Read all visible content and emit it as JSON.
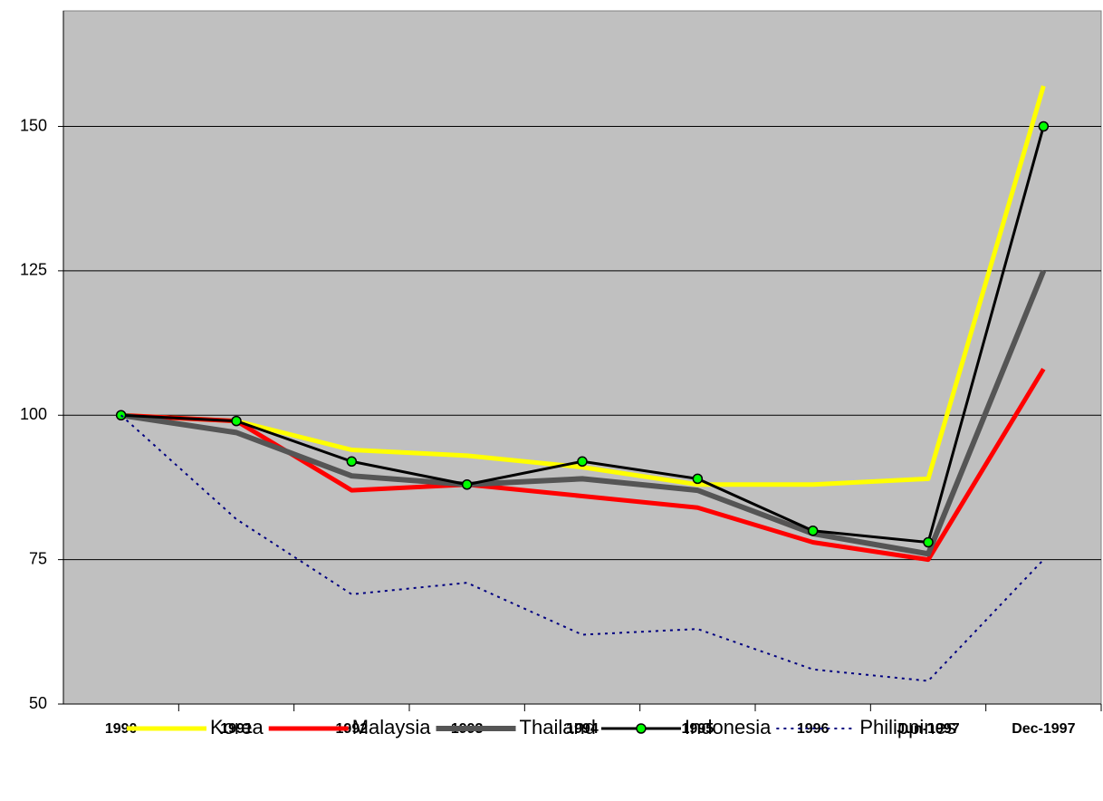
{
  "chart_data": {
    "type": "line",
    "categories": [
      "1990",
      "1991",
      "1992",
      "1993",
      "1994",
      "1995",
      "1996",
      "Jun-1997",
      "Dec-1997"
    ],
    "series": [
      {
        "name": "Korea",
        "color": "#ffff00",
        "values": [
          100,
          99,
          94,
          93,
          91,
          88,
          88,
          89,
          157
        ]
      },
      {
        "name": "Malaysia",
        "color": "#ff0000",
        "values": [
          100,
          99,
          87,
          88,
          86,
          84,
          78,
          75,
          108
        ]
      },
      {
        "name": "Thailand",
        "color": "#555555",
        "values": [
          100,
          97,
          89.5,
          88,
          89,
          87,
          79.5,
          76,
          125
        ]
      },
      {
        "name": "Indonesia",
        "color": "#000000",
        "values": [
          100,
          99,
          92,
          88,
          92,
          89,
          80,
          78,
          150
        ]
      },
      {
        "name": "Philippines",
        "color": "#000080",
        "values": [
          100,
          82,
          69,
          71,
          62,
          63,
          56,
          54,
          75
        ]
      }
    ],
    "ylim": [
      50,
      170
    ],
    "yticks": [
      50,
      75,
      100,
      125,
      150
    ],
    "grid": true,
    "legend": "bottom"
  }
}
